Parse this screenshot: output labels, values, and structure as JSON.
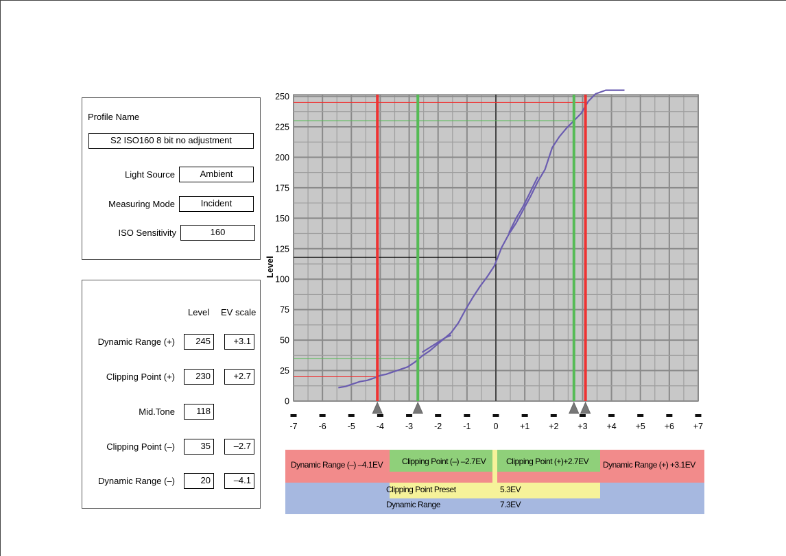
{
  "profile": {
    "title": "Profile Name",
    "name": "S2 ISO160 8 bit no adjustment",
    "light_source_label": "Light Source",
    "light_source": "Ambient",
    "measuring_mode_label": "Measuring Mode",
    "measuring_mode": "Incident",
    "iso_label": "ISO Sensitivity",
    "iso": "160"
  },
  "levels": {
    "col_level": "Level",
    "col_ev": "EV scale",
    "rows": [
      {
        "label": "Dynamic Range (+)",
        "level": "245",
        "ev": "+3.1"
      },
      {
        "label": "Clipping Point (+)",
        "level": "230",
        "ev": "+2.7"
      },
      {
        "label": "Mid.Tone",
        "level": "118",
        "ev": ""
      },
      {
        "label": "Clipping Point (–)",
        "level": "35",
        "ev": "–2.7"
      },
      {
        "label": "Dynamic Range (–)",
        "level": "20",
        "ev": "–4.1"
      }
    ]
  },
  "legend": {
    "dr_minus": "Dynamic Range (–) –4.1EV",
    "cp_minus": "Clipping Point (–) –2.7EV",
    "cp_plus": "Clipping Point (+)+2.7EV",
    "dr_plus": "Dynamic Range (+) +3.1EV",
    "cp_preset_label": "Clipping Point Preset",
    "cp_preset_value": "5.3EV",
    "dr_label": "Dynamic Range",
    "dr_value": "7.3EV"
  },
  "colors": {
    "red": "#ee3333",
    "green": "#55bb55",
    "curve": "#6a5cb0",
    "plot_bg": "#c8c8c8",
    "legend_red": "#f28b8b",
    "legend_green": "#8fd07a",
    "legend_yellow": "#f6f29a",
    "legend_blue": "#a6b8e0"
  },
  "chart_data": {
    "type": "line",
    "ylabel": "Level",
    "xlabel": "",
    "xlim": [
      -7,
      7
    ],
    "ylim": [
      0,
      255
    ],
    "x_ticks": [
      "-7",
      "-6",
      "-5",
      "-4",
      "-3",
      "-2",
      "-1",
      "0",
      "+1",
      "+2",
      "+3",
      "+4",
      "+5",
      "+6",
      "+7"
    ],
    "y_ticks": [
      "0",
      "25",
      "50",
      "75",
      "100",
      "125",
      "150",
      "175",
      "200",
      "225",
      "250"
    ],
    "series": [
      {
        "x": [
          -5.45,
          -5.2,
          -4.95,
          -4.7,
          -4.45,
          -4.2,
          -4.0,
          -3.8,
          -3.55,
          -3.3,
          -3.05,
          -2.8,
          -2.55,
          -2.3,
          -2.05,
          -1.8,
          -1.55,
          -1.3,
          -1.05,
          -0.8,
          -0.55,
          -0.3,
          -0.05,
          0.2,
          0.45,
          0.7,
          0.95,
          1.2,
          1.45,
          1.7,
          1.95,
          2.2,
          2.45,
          2.7,
          2.95,
          3.2,
          3.45,
          3.8,
          4.2,
          4.45
        ],
        "y": [
          11,
          12,
          14,
          16,
          17,
          19,
          21,
          22,
          24,
          26,
          28,
          32,
          37,
          41,
          46,
          51,
          56,
          64,
          75,
          85,
          94,
          102,
          111,
          126,
          137,
          146,
          157,
          168,
          180,
          190,
          208,
          217,
          224,
          230,
          236,
          246,
          252,
          255,
          255,
          255
        ]
      },
      {
        "x": [
          -2.55,
          -2.35,
          -2.15,
          -1.95,
          -1.75,
          -1.55
        ],
        "y": [
          40,
          43,
          46,
          49,
          52,
          54
        ]
      },
      {
        "x": [
          0.45,
          0.7,
          0.95,
          1.2,
          1.45
        ],
        "y": [
          138,
          150,
          160,
          172,
          184
        ]
      }
    ],
    "markers": [
      {
        "name": "Dynamic Range (–)",
        "ev": -4.1,
        "level": 20,
        "color": "red"
      },
      {
        "name": "Clipping Point (–)",
        "ev": -2.7,
        "level": 35,
        "color": "green"
      },
      {
        "name": "Clipping Point (+)",
        "ev": 2.7,
        "level": 230,
        "color": "green"
      },
      {
        "name": "Dynamic Range (+)",
        "ev": 3.1,
        "level": 245,
        "color": "red"
      }
    ],
    "midtone": {
      "ev": 0,
      "level": 118
    },
    "grid": true
  }
}
